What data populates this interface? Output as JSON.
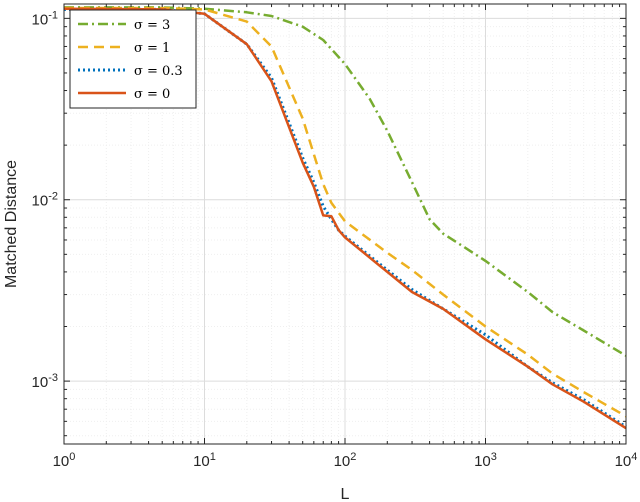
{
  "chart_data": {
    "type": "line",
    "xlabel": "L",
    "ylabel": "Matched Distance",
    "xscale": "log",
    "yscale": "log",
    "xlim": [
      1,
      10000
    ],
    "ylim": [
      0.00045,
      0.12
    ],
    "grid": true,
    "minor_grid": true,
    "legend_position": "top-left",
    "x_ticks": [
      {
        "base": "10",
        "exp": "0"
      },
      {
        "base": "10",
        "exp": "1"
      },
      {
        "base": "10",
        "exp": "2"
      },
      {
        "base": "10",
        "exp": "3"
      },
      {
        "base": "10",
        "exp": "4"
      }
    ],
    "y_ticks": [
      {
        "base": "10",
        "exp": "-3"
      },
      {
        "base": "10",
        "exp": "-2"
      },
      {
        "base": "10",
        "exp": "-1"
      }
    ],
    "series": [
      {
        "name": "σ = 3",
        "color": "#77ac30",
        "dash": "dashdot",
        "x": [
          1,
          5,
          10,
          20,
          30,
          50,
          70,
          100,
          150,
          200,
          300,
          400,
          500,
          700,
          1000,
          2000,
          3000,
          5000,
          10000
        ],
        "y": [
          0.115,
          0.115,
          0.113,
          0.108,
          0.103,
          0.09,
          0.076,
          0.056,
          0.036,
          0.024,
          0.0125,
          0.0078,
          0.0065,
          0.0055,
          0.0046,
          0.0031,
          0.0024,
          0.0019,
          0.00138
        ]
      },
      {
        "name": "σ = 1",
        "color": "#edb120",
        "dash": "dashed",
        "x": [
          1,
          5,
          10,
          20,
          30,
          50,
          70,
          80,
          100,
          200,
          300,
          500,
          1000,
          2000,
          3000,
          5000,
          10000
        ],
        "y": [
          0.114,
          0.114,
          0.112,
          0.096,
          0.07,
          0.028,
          0.0122,
          0.0096,
          0.0076,
          0.0051,
          0.0041,
          0.003,
          0.002,
          0.0014,
          0.0011,
          0.00087,
          0.00064
        ]
      },
      {
        "name": "σ = 0.3",
        "color": "#0072bd",
        "dash": "dotted",
        "x": [
          1,
          5,
          10,
          20,
          30,
          50,
          60,
          70,
          80,
          90,
          100,
          200,
          300,
          500,
          1000,
          2000,
          3000,
          5000,
          10000
        ],
        "y": [
          0.112,
          0.112,
          0.106,
          0.072,
          0.047,
          0.017,
          0.0125,
          0.0092,
          0.0078,
          0.0068,
          0.0063,
          0.0041,
          0.0032,
          0.0025,
          0.0018,
          0.0012,
          0.00098,
          0.00079,
          0.00056
        ]
      },
      {
        "name": "σ = 0",
        "color": "#d95319",
        "dash": "solid",
        "x": [
          1,
          5,
          10,
          20,
          30,
          50,
          60,
          70,
          80,
          90,
          100,
          200,
          300,
          500,
          1000,
          2000,
          3000,
          5000,
          10000
        ],
        "y": [
          0.113,
          0.112,
          0.106,
          0.072,
          0.045,
          0.016,
          0.0118,
          0.0082,
          0.0081,
          0.0068,
          0.0062,
          0.004,
          0.0031,
          0.0025,
          0.0017,
          0.0012,
          0.00096,
          0.00077,
          0.00055
        ]
      }
    ]
  }
}
